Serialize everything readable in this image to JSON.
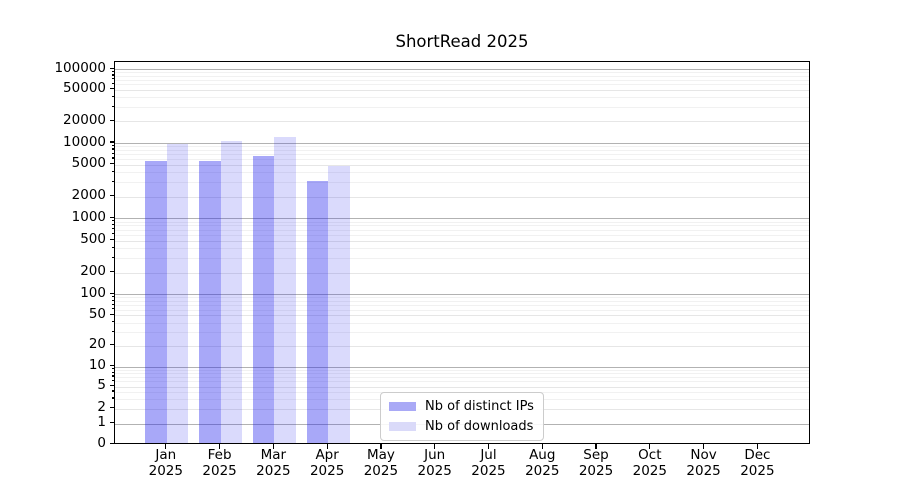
{
  "title": "ShortRead 2025",
  "legend": {
    "items": [
      {
        "label": "Nb of distinct IPs",
        "swatch": "#a9a9f6"
      },
      {
        "label": "Nb of downloads",
        "swatch": "#dadaf9"
      }
    ]
  },
  "colors": {
    "bar_distinct_ips": "rgba(25,25,237,0.38)",
    "bar_downloads": "rgba(25,25,237,0.16)",
    "grid_major": "#b2b2b2",
    "grid_labeled_minor": "#e6e6e6",
    "grid_minor": "#f1f1f1",
    "axis": "#000000"
  },
  "chart_data": {
    "type": "bar",
    "title": "ShortRead 2025",
    "categories": [
      "Jan 2025",
      "Feb 2025",
      "Mar 2025",
      "Apr 2025",
      "May 2025",
      "Jun 2025",
      "Jul 2025",
      "Aug 2025",
      "Sep 2025",
      "Oct 2025",
      "Nov 2025",
      "Dec 2025"
    ],
    "series": [
      {
        "name": "Nb of distinct IPs",
        "values": [
          5400,
          5500,
          6300,
          3000,
          0,
          0,
          0,
          0,
          0,
          0,
          0,
          0
        ]
      },
      {
        "name": "Nb of downloads",
        "values": [
          9300,
          10200,
          11600,
          4600,
          0,
          0,
          0,
          0,
          0,
          0,
          0,
          0
        ]
      }
    ],
    "xlabel": "",
    "ylabel": "",
    "yscale": "symlog",
    "ylim": [
      0,
      150000
    ],
    "grid": true,
    "legend_position": "lower center",
    "yticks": [
      {
        "v": 100000,
        "label": "100000"
      },
      {
        "v": 50000,
        "label": "50000"
      },
      {
        "v": 20000,
        "label": "20000"
      },
      {
        "v": 10000,
        "label": "10000"
      },
      {
        "v": 5000,
        "label": "5000"
      },
      {
        "v": 2000,
        "label": "2000"
      },
      {
        "v": 1000,
        "label": "1000"
      },
      {
        "v": 500,
        "label": "500"
      },
      {
        "v": 200,
        "label": "200"
      },
      {
        "v": 100,
        "label": "100"
      },
      {
        "v": 50,
        "label": "50"
      },
      {
        "v": 20,
        "label": "20"
      },
      {
        "v": 10,
        "label": "10"
      },
      {
        "v": 5,
        "label": "5"
      },
      {
        "v": 2,
        "label": "2"
      },
      {
        "v": 1,
        "label": "1"
      },
      {
        "v": 0,
        "label": "0"
      }
    ]
  }
}
